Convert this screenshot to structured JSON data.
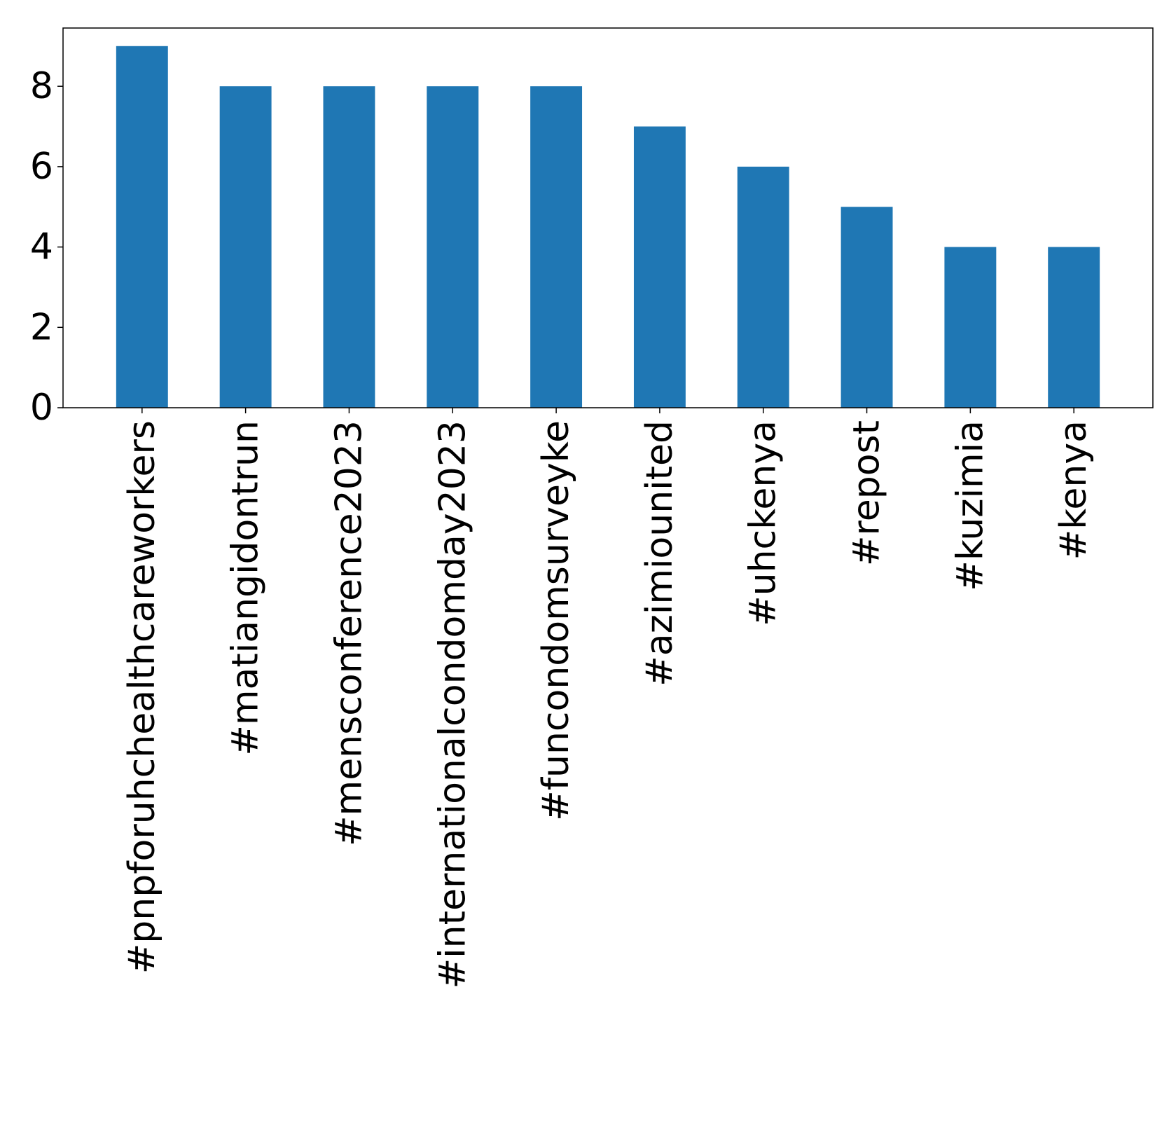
{
  "chart_data": {
    "type": "bar",
    "title": "",
    "xlabel": "",
    "ylabel": "",
    "categories": [
      "#pnpforuhchealthcareworkers",
      "#matiangidontrun",
      "#mensconference2023",
      "#internationalcondomday2023",
      "#funcondomsurveyke",
      "#azimiounited",
      "#uhckenya",
      "#repost",
      "#kuzimia",
      "#kenya"
    ],
    "values": [
      9,
      8,
      8,
      8,
      8,
      7,
      6,
      5,
      4,
      4
    ],
    "ylim": [
      0,
      9.45
    ],
    "yticks": [
      0,
      2,
      4,
      6,
      8
    ],
    "grid": false,
    "legend": "none",
    "bar_color": "#1f77b4",
    "axis_color": "#000000"
  }
}
